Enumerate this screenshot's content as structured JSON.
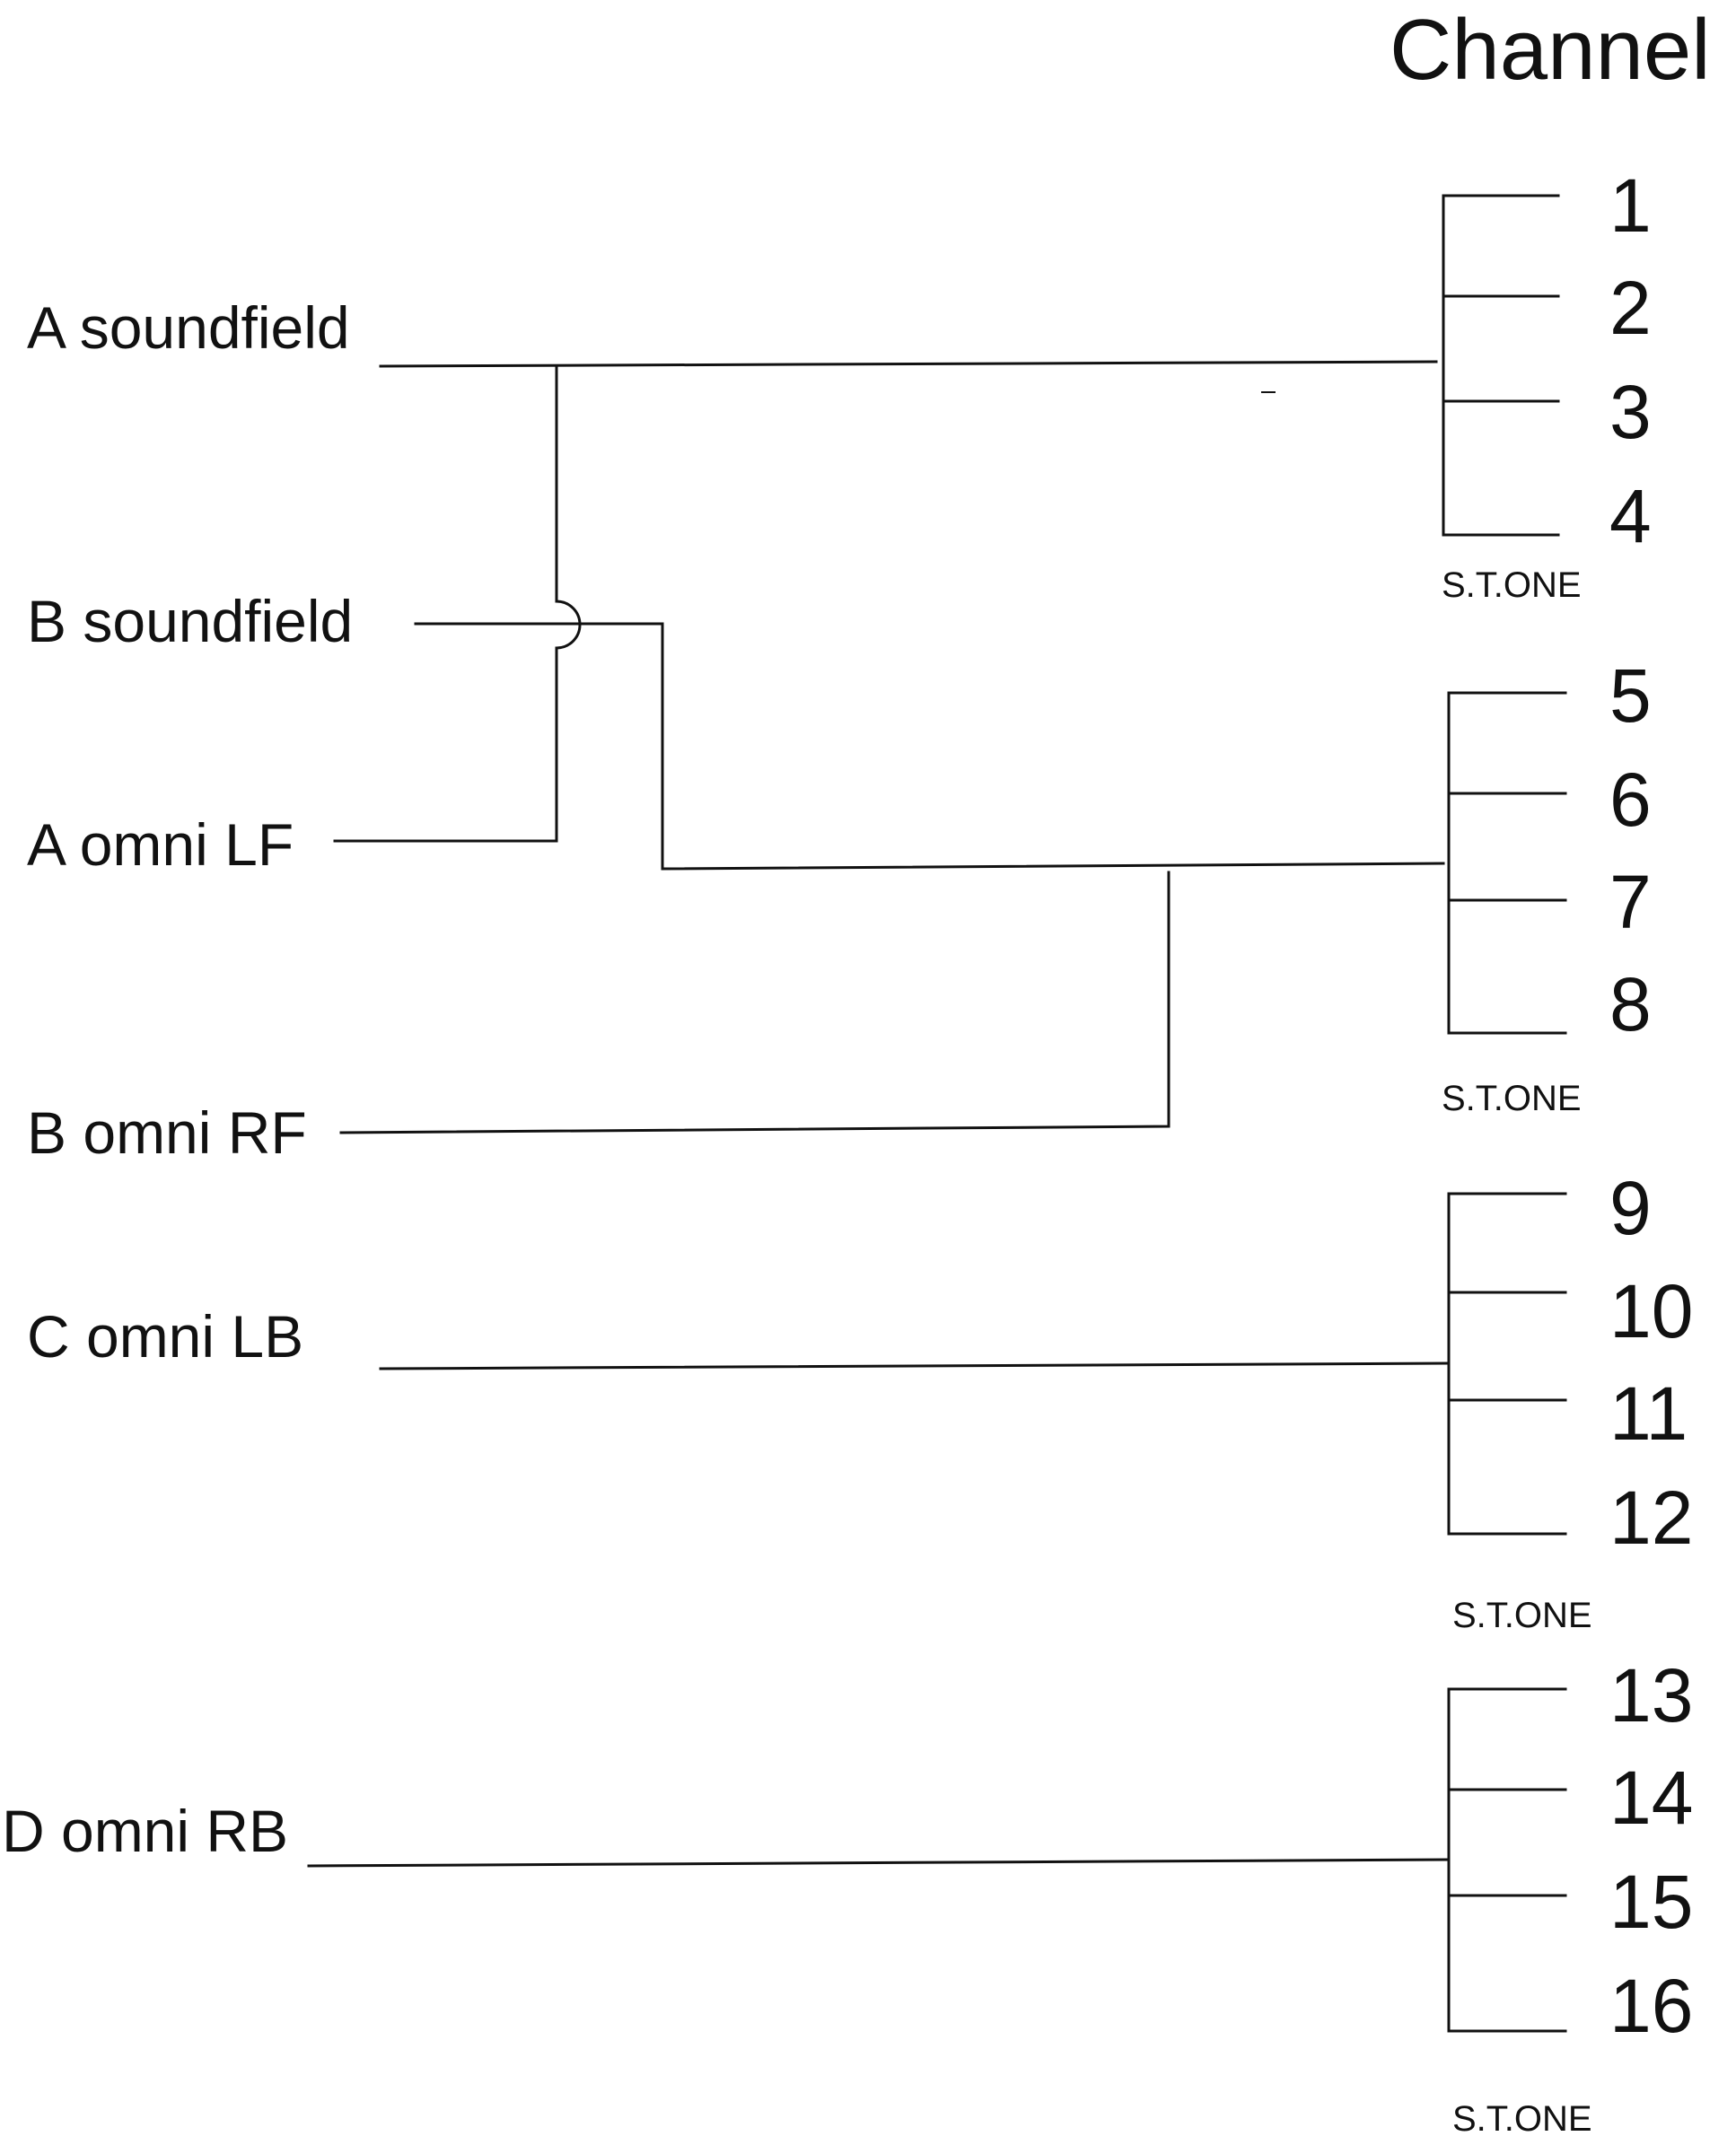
{
  "title": "Channel",
  "colors": {
    "line": "#111111",
    "background": "#ffffff"
  },
  "sources": [
    {
      "id": "a-soundfield",
      "label": "A soundfield"
    },
    {
      "id": "b-soundfield",
      "label": "B soundfield"
    },
    {
      "id": "a-omni-lf",
      "label": "A omni LF"
    },
    {
      "id": "b-omni-rf",
      "label": "B omni RF"
    },
    {
      "id": "c-omni-lb",
      "label": "C omni LB"
    },
    {
      "id": "d-omni-rb",
      "label": "D omni RB"
    }
  ],
  "groups": [
    {
      "device": "S.T.ONE",
      "channels": [
        "1",
        "2",
        "3",
        "4"
      ]
    },
    {
      "device": "S.T.ONE",
      "channels": [
        "5",
        "6",
        "7",
        "8"
      ]
    },
    {
      "device": "S.T.ONE",
      "channels": [
        "9",
        "10",
        "11",
        "12"
      ]
    },
    {
      "device": "S.T.ONE",
      "channels": [
        "13",
        "14",
        "15",
        "16"
      ]
    }
  ],
  "connections": [
    {
      "from": "A soundfield",
      "to_group": 0
    },
    {
      "from": "A omni LF",
      "to_group": 0
    },
    {
      "from": "B soundfield",
      "to_group": 1
    },
    {
      "from": "B omni RF",
      "to_group": 1
    },
    {
      "from": "C omni LB",
      "to_group": 2
    },
    {
      "from": "D omni RB",
      "to_group": 3
    }
  ]
}
